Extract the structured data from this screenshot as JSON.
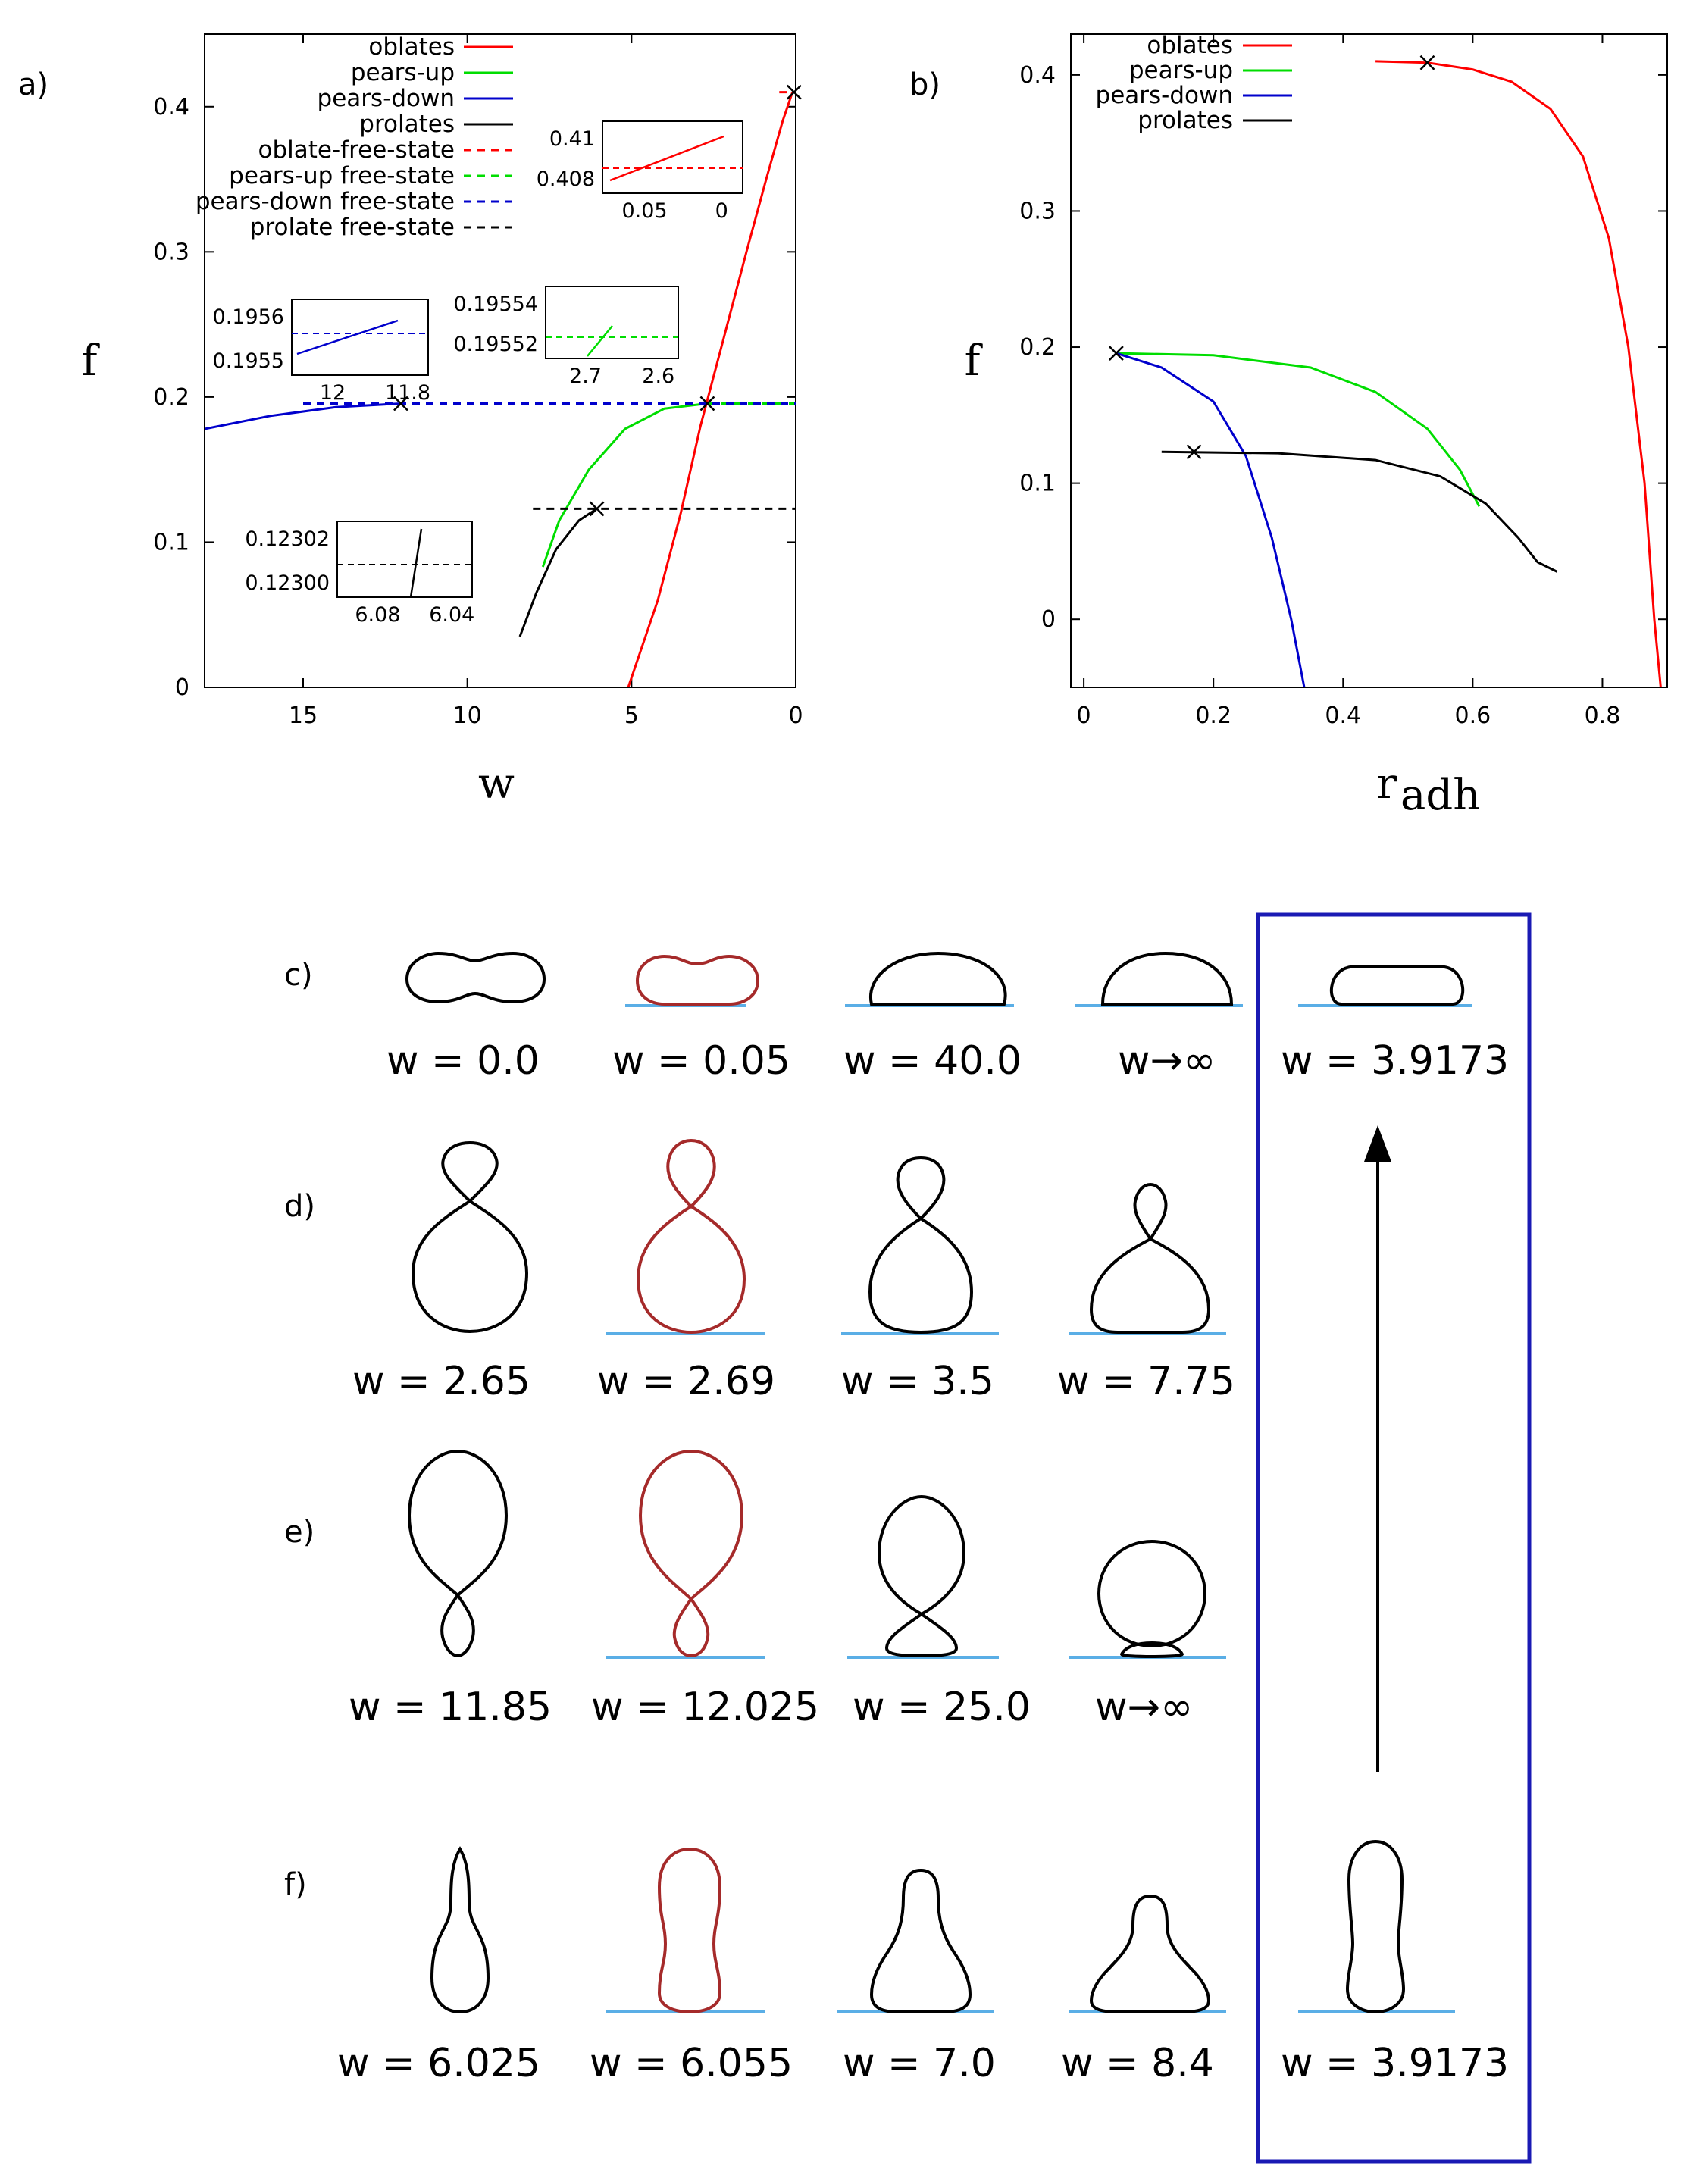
{
  "chart_data": [
    {
      "panel": "a)",
      "type": "line",
      "xlabel": "w",
      "ylabel": "f",
      "xlim": [
        18,
        0
      ],
      "ylim": [
        0,
        0.45
      ],
      "x_reversed": true,
      "xticks": [
        "15",
        "10",
        "5",
        "0"
      ],
      "yticks": [
        "0",
        "0.1",
        "0.2",
        "0.3",
        "0.4"
      ],
      "legend_position": "top-left",
      "series": [
        {
          "name": "oblates",
          "color": "#ff0000",
          "dash": false,
          "points": [
            [
              5.1,
              0
            ],
            [
              4.2,
              0.06
            ],
            [
              3.5,
              0.12
            ],
            [
              2.9,
              0.18
            ],
            [
              2.2,
              0.24
            ],
            [
              1.5,
              0.3
            ],
            [
              0.9,
              0.35
            ],
            [
              0.4,
              0.39
            ],
            [
              0.1,
              0.41
            ]
          ]
        },
        {
          "name": "pears-up",
          "color": "#00dd00",
          "dash": false,
          "points": [
            [
              7.7,
              0.083
            ],
            [
              7.2,
              0.115
            ],
            [
              6.3,
              0.15
            ],
            [
              5.2,
              0.178
            ],
            [
              4.0,
              0.192
            ],
            [
              2.7,
              0.1955
            ]
          ]
        },
        {
          "name": "pears-down",
          "color": "#0000cc",
          "dash": false,
          "points": [
            [
              18,
              0.178
            ],
            [
              16,
              0.187
            ],
            [
              14,
              0.193
            ],
            [
              12.025,
              0.1955
            ]
          ]
        },
        {
          "name": "prolates",
          "color": "#000000",
          "dash": false,
          "points": [
            [
              8.4,
              0.035
            ],
            [
              7.9,
              0.065
            ],
            [
              7.3,
              0.095
            ],
            [
              6.6,
              0.115
            ],
            [
              6.055,
              0.123
            ]
          ]
        },
        {
          "name": "oblate-free-state",
          "color": "#ff0000",
          "dash": true,
          "points": [
            [
              0.5,
              0.41
            ],
            [
              0,
              0.41
            ]
          ]
        },
        {
          "name": "pears-up free-state",
          "color": "#00dd00",
          "dash": true,
          "points": [
            [
              2.7,
              0.1955
            ],
            [
              0,
              0.1955
            ]
          ]
        },
        {
          "name": "pears-down free-state",
          "color": "#0000cc",
          "dash": true,
          "points": [
            [
              15.0,
              0.1955
            ],
            [
              0,
              0.1955
            ]
          ]
        },
        {
          "name": "prolate free-state",
          "color": "#000000",
          "dash": true,
          "points": [
            [
              8.0,
              0.123
            ],
            [
              0,
              0.123
            ]
          ]
        }
      ],
      "markers": [
        [
          0.05,
          0.41
        ],
        [
          2.69,
          0.1955
        ],
        [
          12.025,
          0.1955
        ],
        [
          6.055,
          0.123
        ]
      ],
      "insets": [
        {
          "yticks": [
            "0.41",
            "0.408"
          ],
          "xticks": [
            "0.05",
            "0"
          ],
          "line_color": "#ff0000"
        },
        {
          "yticks": [
            "0.1956",
            "0.1955"
          ],
          "xticks": [
            "12",
            "11.8"
          ],
          "line_color": "#0000cc"
        },
        {
          "yticks": [
            "0.19554",
            "0.19552"
          ],
          "xticks": [
            "2.7",
            "2.6"
          ],
          "line_color": "#00dd00"
        },
        {
          "yticks": [
            "0.12302",
            "0.12300"
          ],
          "xticks": [
            "6.08",
            "6.04"
          ],
          "line_color": "#000000"
        }
      ]
    },
    {
      "panel": "b)",
      "type": "line",
      "xlabel": "r",
      "xlabel_sub": "adh",
      "ylabel": "f",
      "xlim": [
        -0.02,
        0.9
      ],
      "ylim": [
        -0.05,
        0.43
      ],
      "xticks": [
        "0",
        "0.2",
        "0.4",
        "0.6",
        "0.8"
      ],
      "yticks": [
        "0",
        "0.1",
        "0.2",
        "0.3",
        "0.4"
      ],
      "legend_position": "top-left",
      "series": [
        {
          "name": "oblates",
          "color": "#ff0000",
          "points": [
            [
              0.45,
              0.41
            ],
            [
              0.53,
              0.409
            ],
            [
              0.6,
              0.404
            ],
            [
              0.66,
              0.395
            ],
            [
              0.72,
              0.375
            ],
            [
              0.77,
              0.34
            ],
            [
              0.81,
              0.28
            ],
            [
              0.84,
              0.2
            ],
            [
              0.865,
              0.1
            ],
            [
              0.88,
              0.0
            ],
            [
              0.89,
              -0.05
            ]
          ]
        },
        {
          "name": "pears-up",
          "color": "#00dd00",
          "points": [
            [
              0.05,
              0.1955
            ],
            [
              0.2,
              0.194
            ],
            [
              0.35,
              0.185
            ],
            [
              0.45,
              0.167
            ],
            [
              0.53,
              0.14
            ],
            [
              0.58,
              0.11
            ],
            [
              0.61,
              0.083
            ]
          ]
        },
        {
          "name": "pears-down",
          "color": "#0000cc",
          "points": [
            [
              0.05,
              0.1955
            ],
            [
              0.12,
              0.185
            ],
            [
              0.2,
              0.16
            ],
            [
              0.25,
              0.12
            ],
            [
              0.29,
              0.06
            ],
            [
              0.32,
              0.0
            ],
            [
              0.34,
              -0.05
            ]
          ]
        },
        {
          "name": "prolates",
          "color": "#000000",
          "points": [
            [
              0.12,
              0.123
            ],
            [
              0.3,
              0.122
            ],
            [
              0.45,
              0.117
            ],
            [
              0.55,
              0.105
            ],
            [
              0.62,
              0.085
            ],
            [
              0.67,
              0.06
            ],
            [
              0.7,
              0.042
            ],
            [
              0.73,
              0.035
            ]
          ]
        }
      ],
      "markers": [
        [
          0.53,
          0.409
        ],
        [
          0.05,
          0.1955
        ],
        [
          0.17,
          0.123
        ]
      ]
    }
  ],
  "shapes_panel": {
    "rows": [
      {
        "tag": "c)",
        "labels": [
          "w  = 0.0",
          "w  = 0.05",
          "w  = 40.0",
          "w→∞"
        ],
        "boxed_label": "w  = 3.9173"
      },
      {
        "tag": "d)",
        "labels": [
          "w  = 2.65",
          "w  = 2.69",
          "w  = 3.5",
          "w  = 7.75"
        ]
      },
      {
        "tag": "e)",
        "labels": [
          "w  = 11.85",
          "w  = 12.025",
          "w  = 25.0",
          "w→∞"
        ]
      },
      {
        "tag": "f)",
        "labels": [
          "w  = 6.025",
          "w  = 6.055",
          "w  = 7.0",
          "w  = 8.4"
        ],
        "boxed_label": "w  = 3.9173"
      }
    ],
    "colors": {
      "free_state_shape": "#a52a2a",
      "shape": "#000000",
      "substrate": "#5aaee6",
      "box": "#1a1ab4"
    }
  }
}
